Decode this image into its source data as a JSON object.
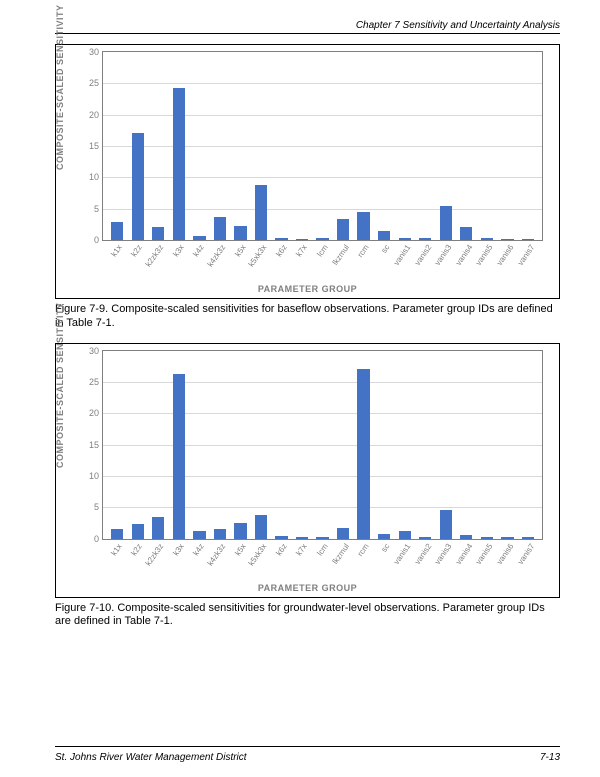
{
  "header": {
    "chapter": "Chapter 7  Sensitivity and Uncertainty Analysis"
  },
  "footer": {
    "org": "St. Johns River Water Management District",
    "pagenum": "7-13"
  },
  "categories": [
    "k1x",
    "k2z",
    "k2zk3z",
    "k3x",
    "k4z",
    "k4zk3z",
    "k5x",
    "k5xk3x",
    "k6z",
    "k7x",
    "lcm",
    "lkzmul",
    "rcm",
    "sc",
    "vanis1",
    "vanis2",
    "vanis3",
    "vanis4",
    "vanis5",
    "vanis6",
    "vanis7"
  ],
  "fig79": {
    "caption": "Figure 7-9.    Composite-scaled sensitivities for baseflow observations. Parameter group IDs are defined in Table 7-1.",
    "ylabel": "COMPOSITE-SCALED SENSITIVITY",
    "xlabel": "PARAMETER GROUP",
    "type": "bar",
    "bar_color": "#4472c4",
    "grid_color": "#d9d9d9",
    "axis_color": "#7f7f7f",
    "background_color": "#ffffff",
    "ylim": [
      0,
      30
    ],
    "yticks": [
      0,
      5,
      10,
      15,
      20,
      25,
      30
    ],
    "values": [
      2.8,
      17.1,
      2.0,
      24.2,
      0.7,
      3.7,
      2.3,
      8.7,
      0.4,
      0.2,
      0.3,
      3.4,
      4.4,
      1.4,
      0.3,
      0.3,
      5.5,
      2.1,
      0.3,
      0.2,
      0.2
    ]
  },
  "fig710": {
    "caption": "Figure 7-10.    Composite-scaled sensitivities for groundwater-level observations. Parameter group IDs are defined in Table 7-1.",
    "ylabel": "COMPOSITE-SCALED SENSITIVITY",
    "xlabel": "PARAMETER GROUP",
    "type": "bar",
    "bar_color": "#4472c4",
    "grid_color": "#d9d9d9",
    "axis_color": "#7f7f7f",
    "background_color": "#ffffff",
    "ylim": [
      0,
      30
    ],
    "yticks": [
      0,
      5,
      10,
      15,
      20,
      25,
      30
    ],
    "values": [
      1.5,
      2.3,
      3.5,
      26.3,
      1.2,
      1.5,
      2.4,
      3.8,
      0.4,
      0.2,
      0.2,
      1.7,
      27.0,
      0.7,
      1.2,
      0.3,
      4.6,
      0.6,
      0.2,
      0.2,
      0.2
    ]
  }
}
